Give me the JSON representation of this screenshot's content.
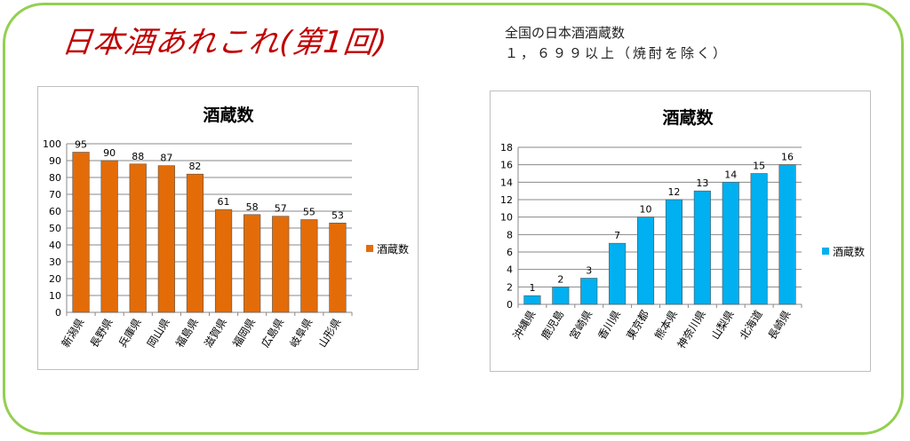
{
  "headline": "日本酒あれこれ(第1回)",
  "note": {
    "line1": "全国の日本酒酒蔵数",
    "line2": "１，６９９以上（焼酎を除く）"
  },
  "colors": {
    "frame": "#92d050",
    "headline": "#c00000",
    "series1": "#e36c09",
    "series2": "#00b0f0"
  },
  "chart_data": [
    {
      "type": "bar",
      "title": "酒蔵数",
      "categories": [
        "新潟県",
        "長野県",
        "兵庫県",
        "岡山県",
        "福島県",
        "滋賀県",
        "福岡県",
        "広島県",
        "岐阜県",
        "山形県"
      ],
      "series": [
        {
          "name": "酒蔵数",
          "values": [
            95,
            90,
            88,
            87,
            82,
            61,
            58,
            57,
            55,
            53
          ]
        }
      ],
      "ylim": [
        0,
        100
      ],
      "yticks": [
        0,
        10,
        20,
        30,
        40,
        50,
        60,
        70,
        80,
        90,
        100
      ],
      "grid": true,
      "legend": "right",
      "data_labels": true,
      "xlabel": "",
      "ylabel": ""
    },
    {
      "type": "bar",
      "title": "酒蔵数",
      "categories": [
        "沖縄県",
        "鹿児島",
        "宮崎県",
        "香川県",
        "東京都",
        "熊本県",
        "神奈川県",
        "山梨県",
        "北海道",
        "長崎県"
      ],
      "series": [
        {
          "name": "酒蔵数",
          "values": [
            1,
            2,
            3,
            7,
            10,
            12,
            13,
            14,
            15,
            16
          ]
        }
      ],
      "ylim": [
        0,
        18
      ],
      "yticks": [
        0,
        2,
        4,
        6,
        8,
        10,
        12,
        14,
        16,
        18
      ],
      "grid": true,
      "legend": "right",
      "data_labels": true,
      "xlabel": "",
      "ylabel": ""
    }
  ]
}
